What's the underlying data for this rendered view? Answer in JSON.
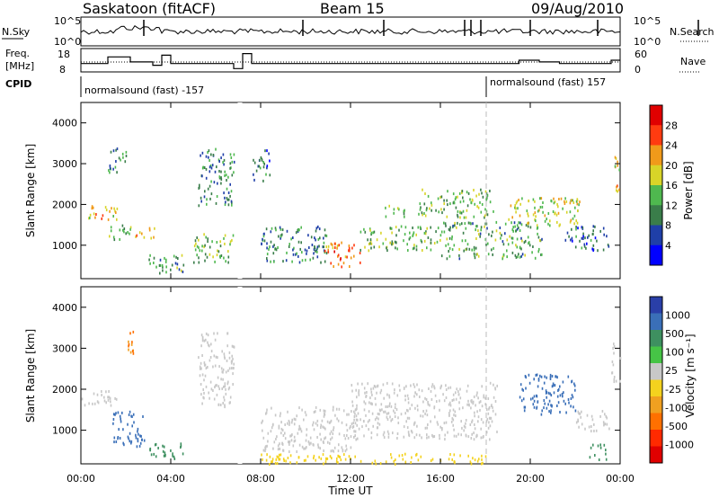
{
  "header": {
    "title": "Saskatoon (fitACF)",
    "beam": "Beam 15",
    "date": "09/Aug/2010"
  },
  "status_panels": {
    "nsky_label": "N.Sky",
    "nsearch_label": "N.Search",
    "freq_label_1": "Freq.",
    "freq_label_2": "[MHz]",
    "nave_label": "Nave",
    "cpid_label": "CPID",
    "noise_left_ticks": [
      "10^5",
      "10^0"
    ],
    "noise_right_ticks": [
      "10^5",
      "10^0"
    ],
    "freq_ticks": [
      "18",
      "8"
    ],
    "nave_ticks": [
      "60",
      "0"
    ],
    "cpid_segments": [
      {
        "start_hour": 0.0,
        "end_hour": 18.0,
        "text": "normalsound (fast) -157"
      },
      {
        "start_hour": 18.0,
        "end_hour": 24.0,
        "text": "normalsound (fast) 157"
      }
    ],
    "freq_trace": [
      [
        0,
        11
      ],
      [
        1.2,
        11
      ],
      [
        1.2,
        15
      ],
      [
        2.2,
        15
      ],
      [
        2.2,
        12
      ],
      [
        3.2,
        12
      ],
      [
        3.2,
        10
      ],
      [
        3.6,
        10
      ],
      [
        3.6,
        16
      ],
      [
        4.0,
        16
      ],
      [
        4.0,
        11
      ],
      [
        6.8,
        11
      ],
      [
        6.8,
        8
      ],
      [
        7.2,
        8
      ],
      [
        7.2,
        17
      ],
      [
        7.6,
        17
      ],
      [
        7.6,
        11
      ],
      [
        19.5,
        11
      ],
      [
        19.5,
        13
      ],
      [
        20.4,
        13
      ],
      [
        20.4,
        12
      ],
      [
        21.3,
        12
      ],
      [
        21.3,
        11
      ],
      [
        23.6,
        11
      ],
      [
        23.6,
        13
      ],
      [
        24,
        13
      ]
    ]
  },
  "panels": [
    {
      "name": "power",
      "ylabel": "Slant Range [km]",
      "ylim": [
        180,
        4500
      ],
      "yticks": [
        "1000",
        "2000",
        "3000",
        "4000"
      ],
      "colorbar_label": "Power [dB]",
      "colorbar_ticks": [
        "4",
        "8",
        "12",
        "16",
        "20",
        "24",
        "28"
      ],
      "colorbar_colors": [
        "#0000ff",
        "#1f3fa8",
        "#3a7d4a",
        "#4fb84f",
        "#d8d428",
        "#f09a1a",
        "#ff3b10",
        "#e00000"
      ]
    },
    {
      "name": "velocity",
      "ylabel": "Slant Range [km]",
      "ylim": [
        180,
        4500
      ],
      "yticks": [
        "1000",
        "2000",
        "3000",
        "4000"
      ],
      "colorbar_label": "Velocity [m s⁻¹]",
      "colorbar_ticks": [
        "1000",
        "500",
        "100",
        "25",
        "-25",
        "-100",
        "-500",
        "-1000"
      ],
      "colorbar_colors": [
        "#2a3fa8",
        "#3a6fb8",
        "#3e9060",
        "#46c446",
        "#c8c8c8",
        "#f4d21e",
        "#f0a020",
        "#ff7000",
        "#ff2a00",
        "#e00000"
      ]
    }
  ],
  "xaxis": {
    "label": "Time UT",
    "ticks": [
      "00:00",
      "04:00",
      "08:00",
      "12:00",
      "16:00",
      "20:00",
      "00:00"
    ],
    "range_hours": [
      0,
      24
    ]
  },
  "chart_data": {
    "type": "heatmap",
    "x_units": "hours UT",
    "y_units": "km",
    "power_patches": [
      {
        "t0": 0.0,
        "t1": 1.6,
        "r0": 1650,
        "r1": 2000,
        "value": 20
      },
      {
        "t0": 1.2,
        "t1": 2.2,
        "r0": 1150,
        "r1": 1550,
        "value": 14
      },
      {
        "t0": 1.2,
        "t1": 2.0,
        "r0": 2800,
        "r1": 3450,
        "value": 10
      },
      {
        "t0": 2.4,
        "t1": 3.3,
        "r0": 1200,
        "r1": 1500,
        "value": 22
      },
      {
        "t0": 3.0,
        "t1": 4.6,
        "r0": 300,
        "r1": 800,
        "value": 12
      },
      {
        "t0": 5.2,
        "t1": 6.8,
        "r0": 2000,
        "r1": 3400,
        "value": 10
      },
      {
        "t0": 5.0,
        "t1": 6.8,
        "r0": 600,
        "r1": 1300,
        "value": 14
      },
      {
        "t0": 7.6,
        "t1": 8.4,
        "r0": 2600,
        "r1": 3400,
        "value": 8
      },
      {
        "t0": 8.0,
        "t1": 11.0,
        "r0": 600,
        "r1": 1500,
        "value": 10
      },
      {
        "t0": 10.8,
        "t1": 12.4,
        "r0": 500,
        "r1": 1100,
        "value": 24
      },
      {
        "t0": 12.4,
        "t1": 16.0,
        "r0": 900,
        "r1": 1500,
        "value": 14
      },
      {
        "t0": 13.4,
        "t1": 14.4,
        "r0": 1700,
        "r1": 2000,
        "value": 16
      },
      {
        "t0": 15.0,
        "t1": 18.4,
        "r0": 1700,
        "r1": 2400,
        "value": 14
      },
      {
        "t0": 16.0,
        "t1": 20.5,
        "r0": 700,
        "r1": 1600,
        "value": 12
      },
      {
        "t0": 19.0,
        "t1": 22.2,
        "r0": 1500,
        "r1": 2200,
        "value": 18
      },
      {
        "t0": 21.5,
        "t1": 23.5,
        "r0": 900,
        "r1": 1500,
        "value": 8
      },
      {
        "t0": 23.7,
        "t1": 24.0,
        "r0": 2300,
        "r1": 3300,
        "value": 20
      }
    ],
    "velocity_patches": [
      {
        "t0": 0.0,
        "t1": 1.6,
        "r0": 1600,
        "r1": 2000,
        "value": 0
      },
      {
        "t0": 1.4,
        "t1": 2.8,
        "r0": 600,
        "r1": 1500,
        "value": 300
      },
      {
        "t0": 2.0,
        "t1": 2.5,
        "r0": 2900,
        "r1": 3500,
        "value": -300
      },
      {
        "t0": 3.0,
        "t1": 4.6,
        "r0": 300,
        "r1": 700,
        "value": 60
      },
      {
        "t0": 5.2,
        "t1": 6.8,
        "r0": 1600,
        "r1": 3400,
        "value": 0
      },
      {
        "t0": 8.0,
        "t1": 12.0,
        "r0": 500,
        "r1": 1600,
        "value": 0
      },
      {
        "t0": 12.0,
        "t1": 18.5,
        "r0": 800,
        "r1": 2200,
        "value": 0
      },
      {
        "t0": 8.0,
        "t1": 18.0,
        "r0": 200,
        "r1": 450,
        "value": -60
      },
      {
        "t0": 19.5,
        "t1": 22.0,
        "r0": 1400,
        "r1": 2400,
        "value": 300
      },
      {
        "t0": 22.0,
        "t1": 23.5,
        "r0": 1000,
        "r1": 1500,
        "value": 0
      },
      {
        "t0": 22.6,
        "t1": 23.4,
        "r0": 300,
        "r1": 700,
        "value": 60
      },
      {
        "t0": 23.6,
        "t1": 24.0,
        "r0": 2200,
        "r1": 3200,
        "value": 0
      }
    ]
  }
}
